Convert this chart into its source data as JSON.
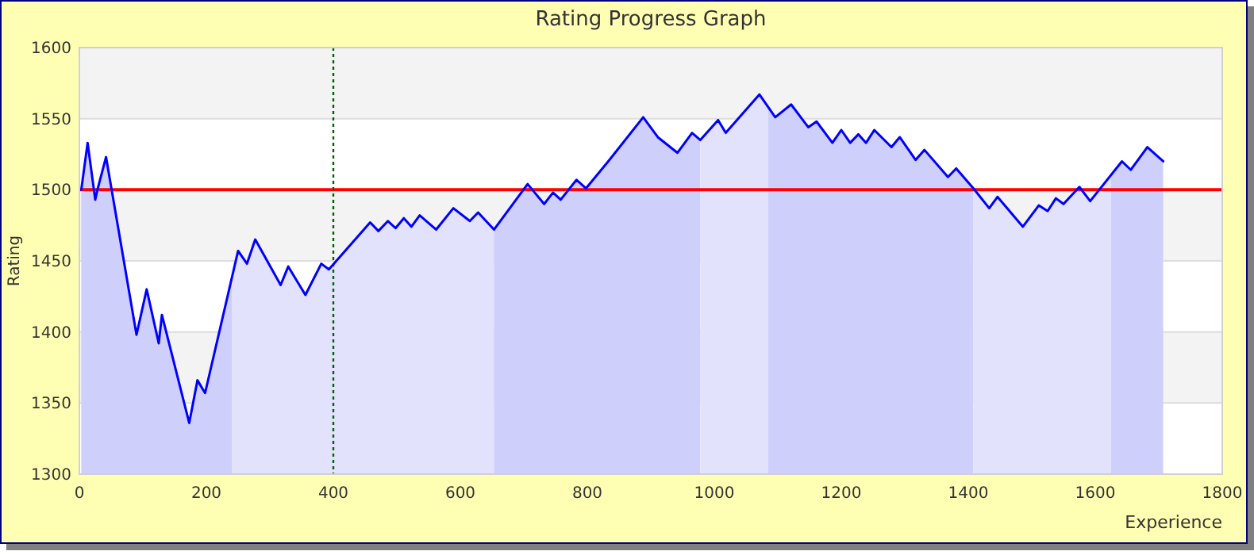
{
  "chart_data": {
    "type": "line",
    "title": "Rating Progress Graph",
    "xlabel": "Experience",
    "ylabel": "Rating",
    "xlim": [
      0,
      1800
    ],
    "ylim": [
      1300,
      1600
    ],
    "xticks": [
      0,
      200,
      400,
      600,
      800,
      1000,
      1200,
      1400,
      1600,
      1800
    ],
    "yticks": [
      1300,
      1350,
      1400,
      1450,
      1500,
      1550,
      1600
    ],
    "grid": "y",
    "series": [
      {
        "type": "area",
        "color": "#cfcffc",
        "x": [
          3,
          13,
          25,
          29,
          42,
          90,
          106,
          125,
          130,
          173,
          186,
          198,
          240
        ],
        "values": [
          1500,
          1533,
          1493,
          1501,
          1523,
          1398,
          1430,
          1392,
          1412,
          1336,
          1366,
          1357,
          1438
        ]
      },
      {
        "type": "area",
        "color": "#e2e2fc",
        "x": [
          240,
          250,
          264,
          277,
          317,
          329,
          356,
          381,
          393,
          458,
          471,
          486,
          498,
          511,
          523,
          536,
          562,
          589,
          615,
          628,
          653
        ],
        "values": [
          1438,
          1457,
          1448,
          1465,
          1433,
          1446,
          1426,
          1448,
          1444,
          1477,
          1471,
          1478,
          1473,
          1480,
          1474,
          1482,
          1472,
          1487,
          1478,
          1484,
          1472
        ]
      },
      {
        "type": "area",
        "color": "#cfcffc",
        "x": [
          653,
          706,
          732,
          746,
          758,
          783,
          798,
          833,
          888,
          911,
          942,
          965,
          978
        ],
        "values": [
          1472,
          1504,
          1490,
          1498,
          1493,
          1507,
          1501,
          1520,
          1551,
          1537,
          1526,
          1540,
          1535
        ]
      },
      {
        "type": "area",
        "color": "#e2e2fc",
        "x": [
          978,
          1006,
          1018,
          1071,
          1085
        ],
        "values": [
          1535,
          1549,
          1540,
          1567,
          1558
        ]
      },
      {
        "type": "area",
        "color": "#cfcffc",
        "x": [
          1085,
          1096,
          1121,
          1148,
          1161,
          1186,
          1200,
          1214,
          1227,
          1239,
          1252,
          1279,
          1292,
          1317,
          1331,
          1368,
          1381,
          1408
        ],
        "values": [
          1558,
          1551,
          1560,
          1544,
          1548,
          1533,
          1542,
          1533,
          1539,
          1533,
          1542,
          1530,
          1537,
          1521,
          1528,
          1509,
          1515,
          1501
        ]
      },
      {
        "type": "area",
        "color": "#e2e2fc",
        "x": [
          1408,
          1433,
          1446,
          1486,
          1511,
          1525,
          1538,
          1550,
          1575,
          1592,
          1625
        ],
        "values": [
          1501,
          1487,
          1495,
          1474,
          1489,
          1485,
          1494,
          1490,
          1502,
          1492,
          1510
        ]
      },
      {
        "type": "area",
        "color": "#cfcffc",
        "x": [
          1625,
          1642,
          1656,
          1682,
          1707
        ],
        "values": [
          1510,
          1520,
          1514,
          1530,
          1520
        ]
      },
      {
        "color": "#0000ff",
        "x": [
          3,
          13,
          25,
          29,
          42,
          90,
          106,
          125,
          130,
          173,
          186,
          198,
          250,
          264,
          277,
          317,
          329,
          356,
          381,
          393,
          458,
          471,
          486,
          498,
          511,
          523,
          536,
          562,
          589,
          615,
          628,
          653,
          706,
          732,
          746,
          758,
          783,
          798,
          833,
          888,
          911,
          942,
          965,
          978,
          1006,
          1018,
          1071,
          1096,
          1121,
          1148,
          1161,
          1186,
          1200,
          1214,
          1227,
          1239,
          1252,
          1279,
          1292,
          1317,
          1331,
          1368,
          1381,
          1408,
          1433,
          1446,
          1486,
          1511,
          1525,
          1538,
          1550,
          1575,
          1592,
          1642,
          1656,
          1682,
          1707
        ],
        "values": [
          1500,
          1533,
          1493,
          1501,
          1523,
          1398,
          1430,
          1392,
          1412,
          1336,
          1366,
          1357,
          1457,
          1448,
          1465,
          1433,
          1446,
          1426,
          1448,
          1444,
          1477,
          1471,
          1478,
          1473,
          1480,
          1474,
          1482,
          1472,
          1487,
          1478,
          1484,
          1472,
          1504,
          1490,
          1498,
          1493,
          1507,
          1501,
          1520,
          1551,
          1537,
          1526,
          1540,
          1535,
          1549,
          1540,
          1567,
          1551,
          1560,
          1544,
          1548,
          1533,
          1542,
          1533,
          1539,
          1533,
          1542,
          1530,
          1537,
          1521,
          1528,
          1509,
          1515,
          1501,
          1487,
          1495,
          1474,
          1489,
          1485,
          1494,
          1490,
          1502,
          1492,
          1520,
          1514,
          1530,
          1520
        ]
      }
    ],
    "ref_lines": [
      {
        "axis": "y",
        "value": 1500,
        "color": "#ff0000",
        "line_style": "solid"
      },
      {
        "axis": "x",
        "value": 400,
        "color": "#006600",
        "line_style": "dotted"
      }
    ]
  }
}
